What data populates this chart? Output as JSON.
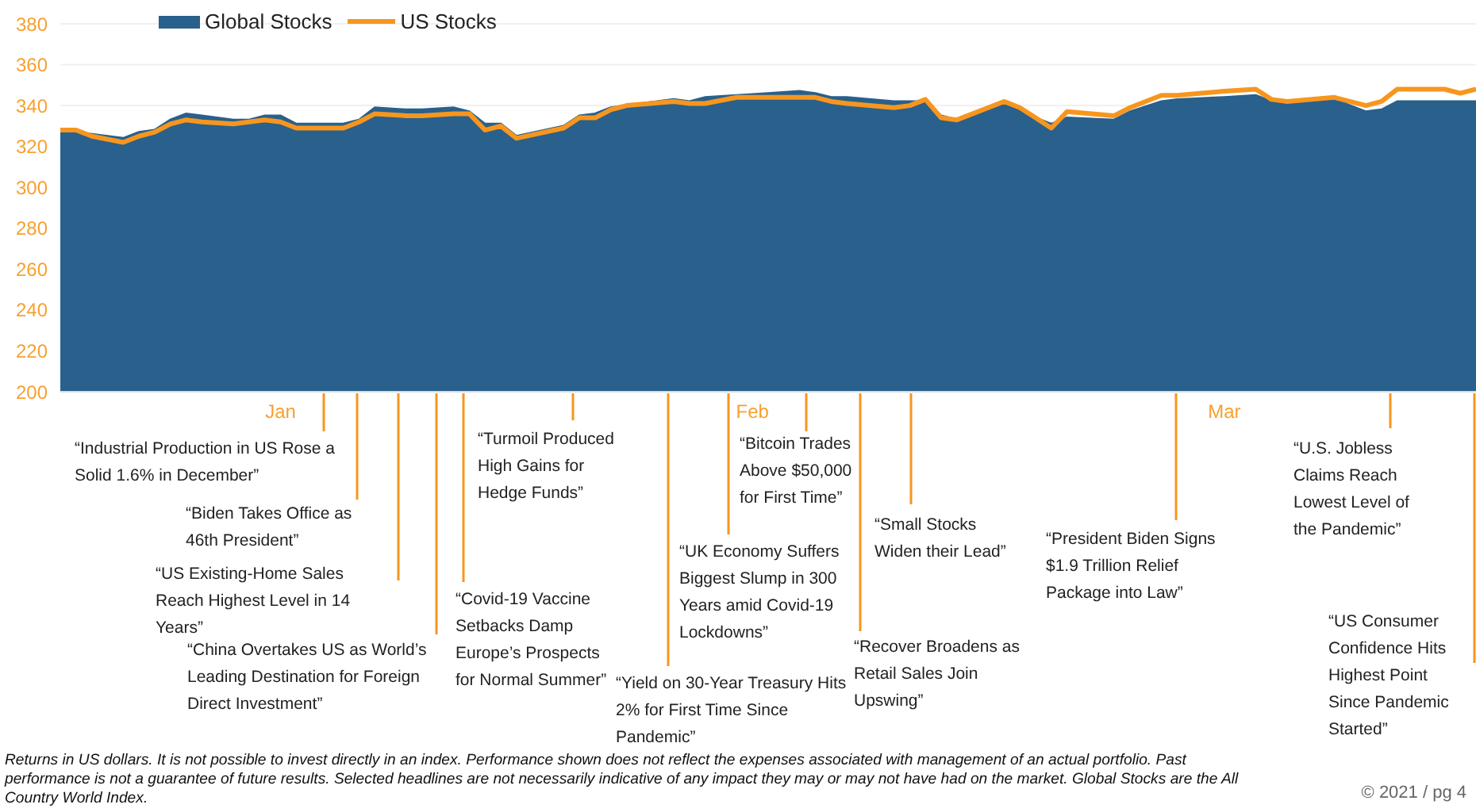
{
  "chart_data": {
    "type": "area",
    "legend": "top",
    "grid": "y",
    "x": [
      "2020-12-31",
      "2021-01-01",
      "2021-01-02",
      "2021-01-04",
      "2021-01-05",
      "2021-01-06",
      "2021-01-07",
      "2021-01-08",
      "2021-01-09",
      "2021-01-11",
      "2021-01-12",
      "2021-01-13",
      "2021-01-14",
      "2021-01-15",
      "2021-01-18",
      "2021-01-19",
      "2021-01-20",
      "2021-01-22",
      "2021-01-23",
      "2021-01-25",
      "2021-01-26",
      "2021-01-27",
      "2021-01-28",
      "2021-01-29",
      "2021-02-01",
      "2021-02-02",
      "2021-02-03",
      "2021-02-04",
      "2021-02-05",
      "2021-02-08",
      "2021-02-09",
      "2021-02-10",
      "2021-02-12",
      "2021-02-14",
      "2021-02-16",
      "2021-02-17",
      "2021-02-18",
      "2021-02-19",
      "2021-02-22",
      "2021-02-23",
      "2021-02-24",
      "2021-02-25",
      "2021-02-26",
      "2021-03-01",
      "2021-03-02",
      "2021-03-03",
      "2021-03-04",
      "2021-03-05",
      "2021-03-08",
      "2021-03-09",
      "2021-03-11",
      "2021-03-12",
      "2021-03-15",
      "2021-03-17",
      "2021-03-18",
      "2021-03-19",
      "2021-03-22",
      "2021-03-24",
      "2021-03-25",
      "2021-03-26",
      "2021-03-29",
      "2021-03-30",
      "2021-03-31"
    ],
    "series": [
      {
        "name": "Global Stocks",
        "color": "#29608c",
        "values": [
          327,
          327,
          326,
          324,
          327,
          328,
          333,
          336,
          335,
          333,
          333,
          335,
          335,
          331,
          331,
          333,
          339,
          338,
          338,
          339,
          337,
          331,
          331,
          325,
          330,
          335,
          336,
          339,
          340,
          343,
          342,
          344,
          345,
          346,
          347,
          346,
          344,
          344,
          342,
          342,
          342,
          335,
          333,
          341,
          338,
          334,
          331,
          334,
          333,
          337,
          342,
          343,
          344,
          345,
          342,
          341,
          343,
          337,
          338,
          342,
          342,
          342,
          342
        ]
      },
      {
        "name": "US Stocks",
        "type": "line",
        "color": "#f7961e",
        "values": [
          328,
          328,
          325,
          322,
          325,
          327,
          331,
          333,
          332,
          331,
          332,
          333,
          332,
          329,
          329,
          332,
          336,
          335,
          335,
          336,
          336,
          328,
          330,
          324,
          329,
          334,
          334,
          338,
          340,
          342,
          341,
          341,
          344,
          344,
          344,
          344,
          342,
          341,
          339,
          340,
          343,
          334,
          333,
          342,
          339,
          334,
          329,
          337,
          335,
          339,
          345,
          345,
          347,
          348,
          343,
          342,
          344,
          340,
          342,
          348,
          348,
          346,
          348
        ]
      }
    ],
    "ylim": [
      200,
      380
    ],
    "yticks": [
      200,
      220,
      240,
      260,
      280,
      300,
      320,
      340,
      360,
      380
    ],
    "xlim": [
      "2020-12-31",
      "2021-03-31"
    ],
    "xticks": [
      {
        "value": "2021-01-14",
        "label": "Jan"
      },
      {
        "value": "2021-02-13",
        "label": "Feb"
      },
      {
        "value": "2021-03-15",
        "label": "Mar"
      }
    ],
    "annotations": [
      "“Industrial Production in US Rose a Solid 1.6% in December”",
      "“Biden Takes Office as 46th President”",
      "“US Existing-Home Sales Reach Highest Level in 14 Years”",
      "“China Overtakes US as World’s Leading Destination for Foreign Direct Investment”",
      "“Covid-19 Vaccine Setbacks Damp Europe’s Prospects for Normal Summer”",
      "“Turmoil Produced High Gains for Hedge Funds”",
      "“Yield on 30-Year Treasury Hits 2% for First Time Since Pandemic”",
      "“UK Economy Suffers Biggest Slump in 300 Years amid Covid-19 Lockdowns”",
      "“Bitcoin Trades Above $50,000 for First Time”",
      "“Recover Broadens as Retail Sales Join Upswing”",
      "“Small Stocks Widen their Lead”",
      "“President Biden Signs $1.9 Trillion Relief Package into Law”",
      "“U.S. Jobless Claims Reach Lowest Level of the Pandemic”",
      "“US Consumer Confidence Hits Highest Point Since Pandemic Started”",
      "Returns in US dollars. It is not possible to invest directly in an index. Performance shown does not reflect the expenses associated with management of an actual portfolio. Past performance is not a guarantee of future results. Selected headlines are not necessarily indicative of any impact they may or may not have had on the market. Global Stocks are the All Country World Index.",
      "© 2021 / pg 4"
    ]
  }
}
